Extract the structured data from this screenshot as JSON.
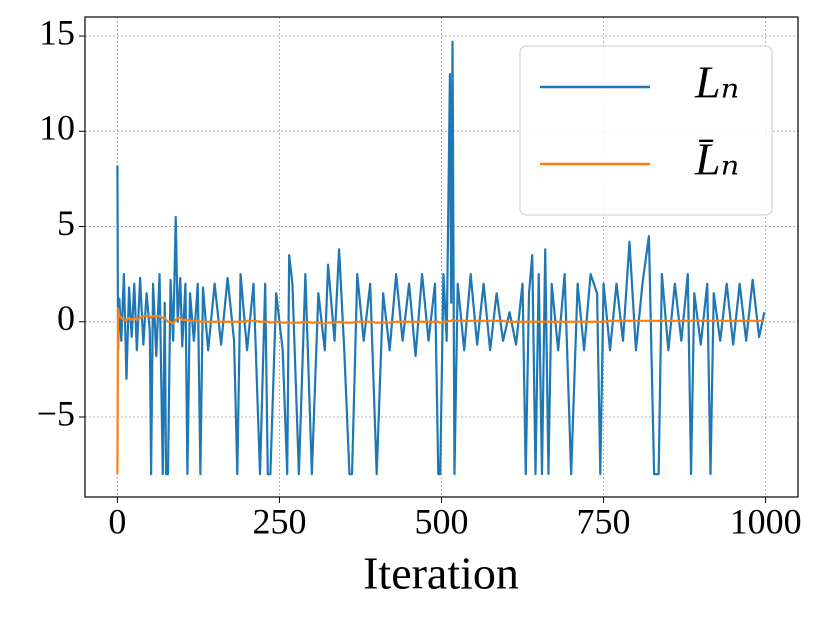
{
  "chart_data": {
    "type": "line",
    "xlabel": "Iteration",
    "x": [
      0,
      1,
      3,
      6,
      10,
      14,
      18,
      22,
      26,
      30,
      35,
      40,
      45,
      50,
      52,
      55,
      60,
      65,
      70,
      73,
      75,
      78,
      82,
      86,
      90,
      93,
      97,
      100,
      105,
      108,
      112,
      118,
      124,
      128,
      132,
      140,
      150,
      160,
      170,
      180,
      185,
      190,
      200,
      210,
      220,
      228,
      232,
      236,
      245,
      255,
      262,
      265,
      270,
      280,
      290,
      300,
      310,
      320,
      325,
      335,
      342,
      350,
      358,
      362,
      370,
      380,
      390,
      400,
      410,
      420,
      430,
      440,
      450,
      460,
      470,
      480,
      490,
      495,
      498,
      503,
      508,
      513,
      515,
      517,
      520,
      525,
      535,
      545,
      555,
      565,
      575,
      585,
      595,
      605,
      615,
      625,
      630,
      635,
      640,
      645,
      650,
      655,
      660,
      665,
      670,
      680,
      690,
      700,
      710,
      720,
      730,
      740,
      745,
      750,
      760,
      770,
      780,
      790,
      800,
      810,
      820,
      828,
      830,
      832,
      835,
      840,
      850,
      860,
      870,
      880,
      885,
      890,
      900,
      910,
      915,
      920,
      930,
      940,
      950,
      960,
      970,
      980,
      990,
      998
    ],
    "series": [
      {
        "name": "Lₙ",
        "color": "#1f77b4",
        "values": [
          8.2,
          -1.5,
          1.2,
          -1.0,
          2.5,
          -3.0,
          1.8,
          -0.8,
          2.0,
          -1.5,
          2.3,
          -1.2,
          1.5,
          -0.5,
          -8,
          2.0,
          -1.8,
          2.5,
          -8,
          1.0,
          -8,
          -8,
          2.2,
          -1.0,
          5.5,
          0.0,
          2.3,
          -1.3,
          2.0,
          -8,
          1.5,
          -1.0,
          2.0,
          -8,
          1.8,
          -1.5,
          2.0,
          -1.2,
          2.3,
          -1.0,
          -8,
          2.5,
          -1.5,
          2.0,
          -8,
          2.0,
          -8,
          -8,
          1.5,
          -1.5,
          -8,
          3.5,
          2.0,
          -8,
          2.5,
          -8,
          1.5,
          -1.5,
          3.0,
          -1.0,
          3.8,
          -1.5,
          -8,
          -8,
          2.5,
          -1.0,
          2.0,
          -8,
          1.5,
          -1.5,
          2.5,
          -1.0,
          2.0,
          -1.8,
          2.5,
          -1.0,
          2.0,
          -8,
          -8,
          2.5,
          -1.0,
          13.0,
          1.0,
          14.7,
          -8,
          2.0,
          -1.5,
          2.5,
          -1.2,
          2.0,
          -1.5,
          1.5,
          -1.0,
          0.5,
          -1.2,
          2.0,
          -8,
          1.5,
          3.5,
          -8,
          2.5,
          -8,
          3.8,
          -8,
          2.0,
          -1.5,
          2.5,
          -8,
          2.0,
          -1.5,
          2.5,
          1.5,
          -8,
          2.0,
          -1.5,
          2.0,
          -1.0,
          4.2,
          -1.5,
          2.0,
          4.5,
          -8,
          -8,
          -8,
          -8,
          2.5,
          -1.5,
          2.0,
          -1.0,
          2.5,
          -8,
          1.5,
          -1.2,
          2.0,
          -8,
          1.5,
          -1.0,
          2.0,
          -1.2,
          2.0,
          -1.0,
          2.2,
          -0.8,
          0.5
        ]
      },
      {
        "name": "L̄ₙ",
        "color": "#ff7f0e",
        "values": [
          -8,
          0.7,
          0.3,
          0.2,
          0.1,
          0.1,
          0.2,
          0.1,
          0.2,
          0.1,
          0.2,
          0.3,
          0.3,
          0.3,
          0.2,
          0.3,
          0.3,
          0.3,
          0.2,
          0.2,
          0.1,
          0.0,
          0.0,
          -0.1,
          0.1,
          0.2,
          0.2,
          0.1,
          0.1,
          0.1,
          0.05,
          0.05,
          0.05,
          0.0,
          0.0,
          0.0,
          0.0,
          0.0,
          0.0,
          0.0,
          0.0,
          0.0,
          0.05,
          0.05,
          0.0,
          0.0,
          0.0,
          -0.05,
          0.0,
          -0.05,
          -0.05,
          -0.05,
          -0.05,
          -0.05,
          0.0,
          -0.05,
          -0.05,
          -0.1,
          -0.05,
          -0.05,
          0.0,
          -0.05,
          -0.05,
          -0.05,
          0.0,
          0.0,
          0.0,
          -0.05,
          -0.05,
          -0.05,
          0.0,
          0.0,
          0.0,
          0.0,
          0.0,
          0.0,
          0.0,
          0.0,
          -0.05,
          0.0,
          0.0,
          0.05,
          0.05,
          0.1,
          0.05,
          0.05,
          0.05,
          0.05,
          0.05,
          0.05,
          0.05,
          0.05,
          0.05,
          0.0,
          0.0,
          0.0,
          0.0,
          0.0,
          0.0,
          0.0,
          0.0,
          0.0,
          0.0,
          0.0,
          0.0,
          0.0,
          0.0,
          0.0,
          0.0,
          0.0,
          0.0,
          0.0,
          0.0,
          0.0,
          0.05,
          0.05,
          0.05,
          0.05,
          0.05,
          0.05,
          0.05,
          0.05,
          0.05,
          0.05,
          0.05,
          0.05,
          0.05,
          0.05,
          0.05,
          0.05,
          0.05,
          0.05,
          0.05,
          0.05,
          0.05,
          0.05,
          0.05,
          0.05,
          0.05,
          0.05,
          0.05,
          0.05,
          0.05,
          0.05
        ]
      }
    ],
    "xlim": [
      -50,
      1050
    ],
    "ylim": [
      -9.2,
      16.0
    ],
    "xticks": [
      0,
      250,
      500,
      750,
      1000
    ],
    "yticks": [
      {
        "value": -5,
        "label": "−5"
      },
      0,
      5,
      10,
      15
    ],
    "grid": true,
    "legend": "upper right"
  }
}
